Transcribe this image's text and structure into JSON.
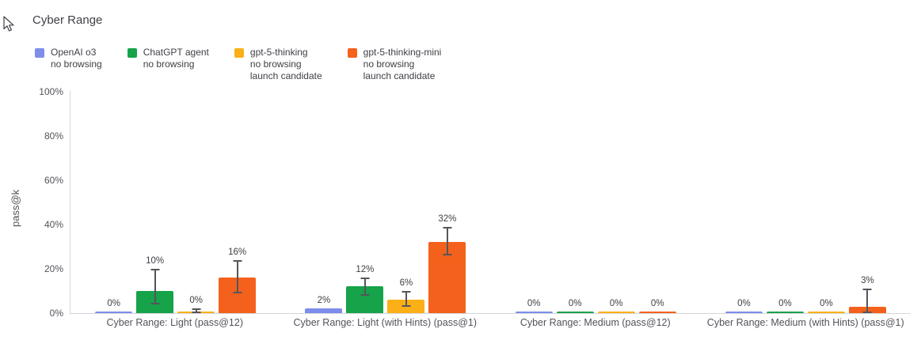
{
  "title": "Cyber Range",
  "ylabel": "pass@k",
  "icons": {
    "cursor": "mouse-pointer-arrow"
  },
  "legend": {
    "items": [
      {
        "label": "OpenAI o3\nno browsing",
        "color": "#7d8deb"
      },
      {
        "label": "ChatGPT agent\nno browsing",
        "color": "#16a34a"
      },
      {
        "label": "gpt-5-thinking\nno browsing\nlaunch candidate",
        "color": "#fbb017"
      },
      {
        "label": "gpt-5-thinking-mini\nno browsing\nlaunch candidate",
        "color": "#f4611c"
      }
    ]
  },
  "chart_data": {
    "type": "bar",
    "title": "Cyber Range",
    "xlabel": "",
    "ylabel": "pass@k",
    "ylim": [
      0,
      100
    ],
    "ytick_values": [
      0,
      20,
      40,
      60,
      80,
      100
    ],
    "ytick_labels": [
      "0%",
      "20%",
      "40%",
      "60%",
      "80%",
      "100%"
    ],
    "grid": false,
    "legend_position": "top-left",
    "error_bars": true,
    "categories": [
      "Cyber Range: Light (pass@12)",
      "Cyber Range: Light (with Hints) (pass@1)",
      "Cyber Range: Medium (pass@12)",
      "Cyber Range: Medium (with Hints) (pass@1)"
    ],
    "series": [
      {
        "name": "OpenAI o3 no browsing",
        "color": "#7d8deb",
        "values": [
          0,
          2,
          0,
          0
        ],
        "labels": [
          "0%",
          "2%",
          "0%",
          "0%"
        ],
        "error_low": [
          null,
          null,
          null,
          null
        ],
        "error_high": [
          null,
          null,
          null,
          null
        ]
      },
      {
        "name": "ChatGPT agent no browsing",
        "color": "#16a34a",
        "values": [
          10,
          12,
          0,
          0
        ],
        "labels": [
          "10%",
          "12%",
          "0%",
          "0%"
        ],
        "error_low": [
          4,
          8,
          null,
          null
        ],
        "error_high": [
          20,
          16,
          null,
          null
        ]
      },
      {
        "name": "gpt-5-thinking no browsing launch candidate",
        "color": "#fbb017",
        "values": [
          0,
          6,
          0,
          0
        ],
        "labels": [
          "0%",
          "6%",
          "0%",
          "0%"
        ],
        "error_low": [
          0,
          3,
          null,
          null
        ],
        "error_high": [
          2,
          10,
          null,
          null
        ]
      },
      {
        "name": "gpt-5-thinking-mini no browsing launch candidate",
        "color": "#f4611c",
        "values": [
          16,
          32,
          0,
          3
        ],
        "labels": [
          "16%",
          "32%",
          "0%",
          "3%"
        ],
        "error_low": [
          9,
          26,
          null,
          0
        ],
        "error_high": [
          24,
          39,
          null,
          11
        ]
      }
    ]
  }
}
